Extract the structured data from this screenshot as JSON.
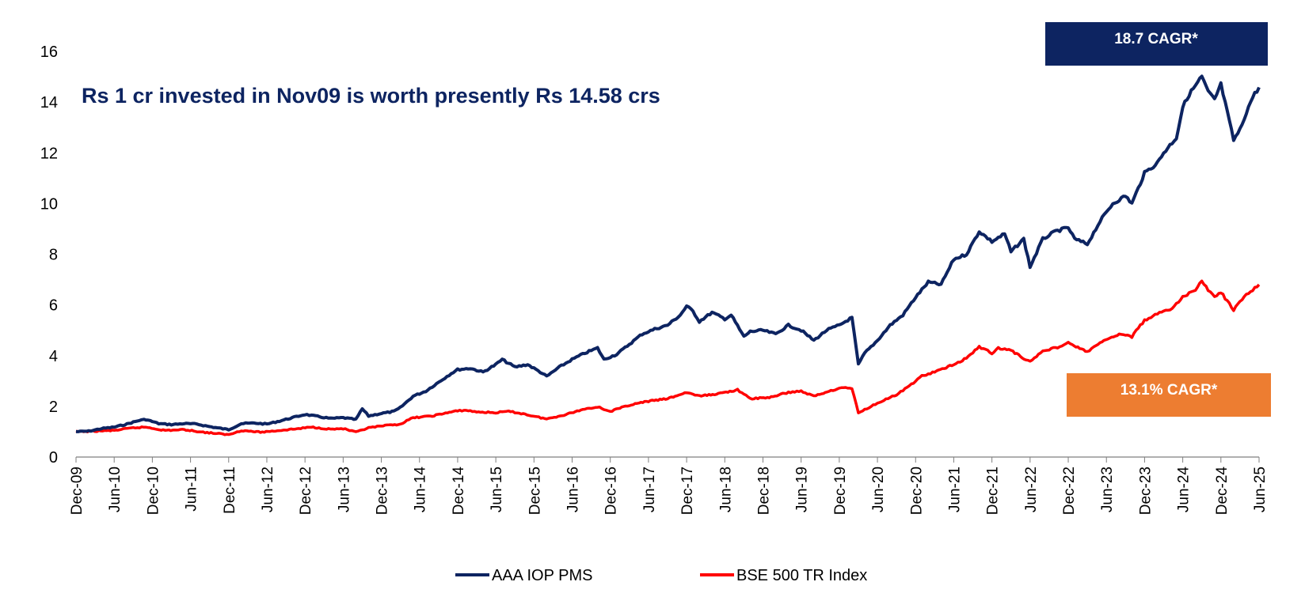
{
  "chart_data": {
    "type": "line",
    "title": "Rs 1 cr invested in Nov09 is worth presently Rs 14.58 crs",
    "xlabel": "",
    "ylabel": "",
    "ylim": [
      0,
      16
    ],
    "yticks": [
      "0",
      "2",
      "4",
      "6",
      "8",
      "10",
      "12",
      "14",
      "16"
    ],
    "xlim": [
      "2009-12",
      "2025-06"
    ],
    "xticks": [
      "Dec-09",
      "Jun-10",
      "Dec-10",
      "Jun-11",
      "Dec-11",
      "Jun-12",
      "Dec-12",
      "Jun-13",
      "Dec-13",
      "Jun-14",
      "Dec-14",
      "Jun-15",
      "Dec-15",
      "Jun-16",
      "Dec-16",
      "Jun-17",
      "Dec-17",
      "Jun-18",
      "Dec-18",
      "Jun-19",
      "Dec-19",
      "Jun-20",
      "Dec-20",
      "Jun-21",
      "Dec-21",
      "Jun-22",
      "Dec-22",
      "Jun-23",
      "Dec-23",
      "Jun-24",
      "Dec-24",
      "Jun-25"
    ],
    "grid": false,
    "legend_position": "bottom",
    "series": [
      {
        "name": "AAA IOP PMS",
        "color": "#0d2461",
        "points": [
          [
            "2009-12",
            1.0
          ],
          [
            "2010-02",
            1.02
          ],
          [
            "2010-04",
            1.12
          ],
          [
            "2010-06",
            1.18
          ],
          [
            "2010-08",
            1.3
          ],
          [
            "2010-10",
            1.45
          ],
          [
            "2010-11",
            1.48
          ],
          [
            "2011-01",
            1.32
          ],
          [
            "2011-03",
            1.28
          ],
          [
            "2011-05",
            1.32
          ],
          [
            "2011-07",
            1.3
          ],
          [
            "2011-09",
            1.2
          ],
          [
            "2011-12",
            1.08
          ],
          [
            "2012-02",
            1.32
          ],
          [
            "2012-04",
            1.34
          ],
          [
            "2012-06",
            1.3
          ],
          [
            "2012-08",
            1.42
          ],
          [
            "2012-10",
            1.55
          ],
          [
            "2012-12",
            1.68
          ],
          [
            "2013-02",
            1.6
          ],
          [
            "2013-04",
            1.52
          ],
          [
            "2013-06",
            1.55
          ],
          [
            "2013-08",
            1.48
          ],
          [
            "2013-09",
            1.9
          ],
          [
            "2013-10",
            1.62
          ],
          [
            "2013-12",
            1.72
          ],
          [
            "2014-02",
            1.8
          ],
          [
            "2014-03",
            1.95
          ],
          [
            "2014-05",
            2.4
          ],
          [
            "2014-07",
            2.6
          ],
          [
            "2014-09",
            2.95
          ],
          [
            "2014-11",
            3.3
          ],
          [
            "2014-12",
            3.45
          ],
          [
            "2015-02",
            3.5
          ],
          [
            "2015-04",
            3.35
          ],
          [
            "2015-06",
            3.65
          ],
          [
            "2015-07",
            3.85
          ],
          [
            "2015-09",
            3.55
          ],
          [
            "2015-11",
            3.65
          ],
          [
            "2016-01",
            3.35
          ],
          [
            "2016-02",
            3.18
          ],
          [
            "2016-04",
            3.55
          ],
          [
            "2016-06",
            3.85
          ],
          [
            "2016-08",
            4.1
          ],
          [
            "2016-10",
            4.3
          ],
          [
            "2016-11",
            3.85
          ],
          [
            "2017-01",
            4.05
          ],
          [
            "2017-03",
            4.45
          ],
          [
            "2017-05",
            4.85
          ],
          [
            "2017-07",
            5.05
          ],
          [
            "2017-09",
            5.2
          ],
          [
            "2017-11",
            5.6
          ],
          [
            "2017-12",
            5.95
          ],
          [
            "2018-01",
            5.75
          ],
          [
            "2018-02",
            5.35
          ],
          [
            "2018-04",
            5.7
          ],
          [
            "2018-06",
            5.45
          ],
          [
            "2018-07",
            5.6
          ],
          [
            "2018-09",
            4.75
          ],
          [
            "2018-10",
            4.95
          ],
          [
            "2018-12",
            5.0
          ],
          [
            "2019-02",
            4.85
          ],
          [
            "2019-04",
            5.2
          ],
          [
            "2019-06",
            5.0
          ],
          [
            "2019-08",
            4.6
          ],
          [
            "2019-10",
            5.0
          ],
          [
            "2019-12",
            5.2
          ],
          [
            "2020-02",
            5.5
          ],
          [
            "2020-03",
            3.65
          ],
          [
            "2020-04",
            4.1
          ],
          [
            "2020-06",
            4.6
          ],
          [
            "2020-08",
            5.2
          ],
          [
            "2020-10",
            5.6
          ],
          [
            "2020-12",
            6.3
          ],
          [
            "2021-02",
            6.9
          ],
          [
            "2021-04",
            6.8
          ],
          [
            "2021-06",
            7.8
          ],
          [
            "2021-08",
            8.0
          ],
          [
            "2021-10",
            8.9
          ],
          [
            "2021-12",
            8.5
          ],
          [
            "2022-02",
            8.8
          ],
          [
            "2022-03",
            8.1
          ],
          [
            "2022-05",
            8.6
          ],
          [
            "2022-06",
            7.5
          ],
          [
            "2022-08",
            8.6
          ],
          [
            "2022-10",
            8.9
          ],
          [
            "2022-12",
            9.05
          ],
          [
            "2023-01",
            8.6
          ],
          [
            "2023-03",
            8.4
          ],
          [
            "2023-05",
            9.3
          ],
          [
            "2023-07",
            10.0
          ],
          [
            "2023-09",
            10.3
          ],
          [
            "2023-10",
            10.0
          ],
          [
            "2023-12",
            11.2
          ],
          [
            "2024-02",
            11.6
          ],
          [
            "2024-03",
            12.0
          ],
          [
            "2024-05",
            12.6
          ],
          [
            "2024-06",
            13.8
          ],
          [
            "2024-07",
            14.3
          ],
          [
            "2024-09",
            15.0
          ],
          [
            "2024-10",
            14.4
          ],
          [
            "2024-11",
            14.1
          ],
          [
            "2024-12",
            14.7
          ],
          [
            "2025-01",
            13.6
          ],
          [
            "2025-02",
            12.5
          ],
          [
            "2025-03",
            12.9
          ],
          [
            "2025-04",
            13.6
          ],
          [
            "2025-05",
            14.2
          ],
          [
            "2025-06",
            14.58
          ]
        ]
      },
      {
        "name": "BSE 500 TR Index",
        "color": "#ff0000",
        "points": [
          [
            "2009-12",
            1.0
          ],
          [
            "2010-03",
            1.02
          ],
          [
            "2010-06",
            1.05
          ],
          [
            "2010-09",
            1.15
          ],
          [
            "2010-11",
            1.18
          ],
          [
            "2011-02",
            1.05
          ],
          [
            "2011-05",
            1.08
          ],
          [
            "2011-08",
            0.98
          ],
          [
            "2011-12",
            0.88
          ],
          [
            "2012-02",
            1.05
          ],
          [
            "2012-05",
            0.98
          ],
          [
            "2012-08",
            1.05
          ],
          [
            "2012-11",
            1.12
          ],
          [
            "2013-01",
            1.18
          ],
          [
            "2013-04",
            1.1
          ],
          [
            "2013-06",
            1.12
          ],
          [
            "2013-08",
            0.98
          ],
          [
            "2013-10",
            1.15
          ],
          [
            "2013-12",
            1.22
          ],
          [
            "2014-03",
            1.3
          ],
          [
            "2014-05",
            1.55
          ],
          [
            "2014-08",
            1.62
          ],
          [
            "2014-11",
            1.78
          ],
          [
            "2015-01",
            1.85
          ],
          [
            "2015-03",
            1.78
          ],
          [
            "2015-06",
            1.75
          ],
          [
            "2015-08",
            1.8
          ],
          [
            "2015-10",
            1.72
          ],
          [
            "2016-02",
            1.5
          ],
          [
            "2016-05",
            1.68
          ],
          [
            "2016-08",
            1.9
          ],
          [
            "2016-10",
            1.98
          ],
          [
            "2016-12",
            1.8
          ],
          [
            "2017-03",
            2.05
          ],
          [
            "2017-06",
            2.2
          ],
          [
            "2017-09",
            2.3
          ],
          [
            "2017-12",
            2.55
          ],
          [
            "2018-02",
            2.4
          ],
          [
            "2018-05",
            2.5
          ],
          [
            "2018-08",
            2.65
          ],
          [
            "2018-10",
            2.3
          ],
          [
            "2019-01",
            2.35
          ],
          [
            "2019-04",
            2.55
          ],
          [
            "2019-06",
            2.6
          ],
          [
            "2019-08",
            2.4
          ],
          [
            "2019-11",
            2.65
          ],
          [
            "2020-01",
            2.75
          ],
          [
            "2020-02",
            2.7
          ],
          [
            "2020-03",
            1.75
          ],
          [
            "2020-05",
            2.0
          ],
          [
            "2020-07",
            2.25
          ],
          [
            "2020-09",
            2.45
          ],
          [
            "2020-11",
            2.8
          ],
          [
            "2021-01",
            3.2
          ],
          [
            "2021-03",
            3.35
          ],
          [
            "2021-06",
            3.65
          ],
          [
            "2021-08",
            3.9
          ],
          [
            "2021-10",
            4.35
          ],
          [
            "2021-12",
            4.1
          ],
          [
            "2022-01",
            4.3
          ],
          [
            "2022-03",
            4.2
          ],
          [
            "2022-06",
            3.75
          ],
          [
            "2022-08",
            4.2
          ],
          [
            "2022-10",
            4.3
          ],
          [
            "2022-12",
            4.5
          ],
          [
            "2023-03",
            4.15
          ],
          [
            "2023-05",
            4.5
          ],
          [
            "2023-08",
            4.85
          ],
          [
            "2023-10",
            4.75
          ],
          [
            "2023-12",
            5.4
          ],
          [
            "2024-02",
            5.65
          ],
          [
            "2024-04",
            5.8
          ],
          [
            "2024-06",
            6.3
          ],
          [
            "2024-08",
            6.6
          ],
          [
            "2024-09",
            6.95
          ],
          [
            "2024-10",
            6.6
          ],
          [
            "2024-11",
            6.3
          ],
          [
            "2024-12",
            6.5
          ],
          [
            "2025-02",
            5.8
          ],
          [
            "2025-03",
            6.1
          ],
          [
            "2025-04",
            6.4
          ],
          [
            "2025-06",
            6.8
          ]
        ]
      }
    ],
    "annotations": [
      {
        "text": "18.7 CAGR*",
        "color": "#0d2461"
      },
      {
        "text": "13.1% CAGR*",
        "color": "#ed7d31"
      }
    ]
  }
}
